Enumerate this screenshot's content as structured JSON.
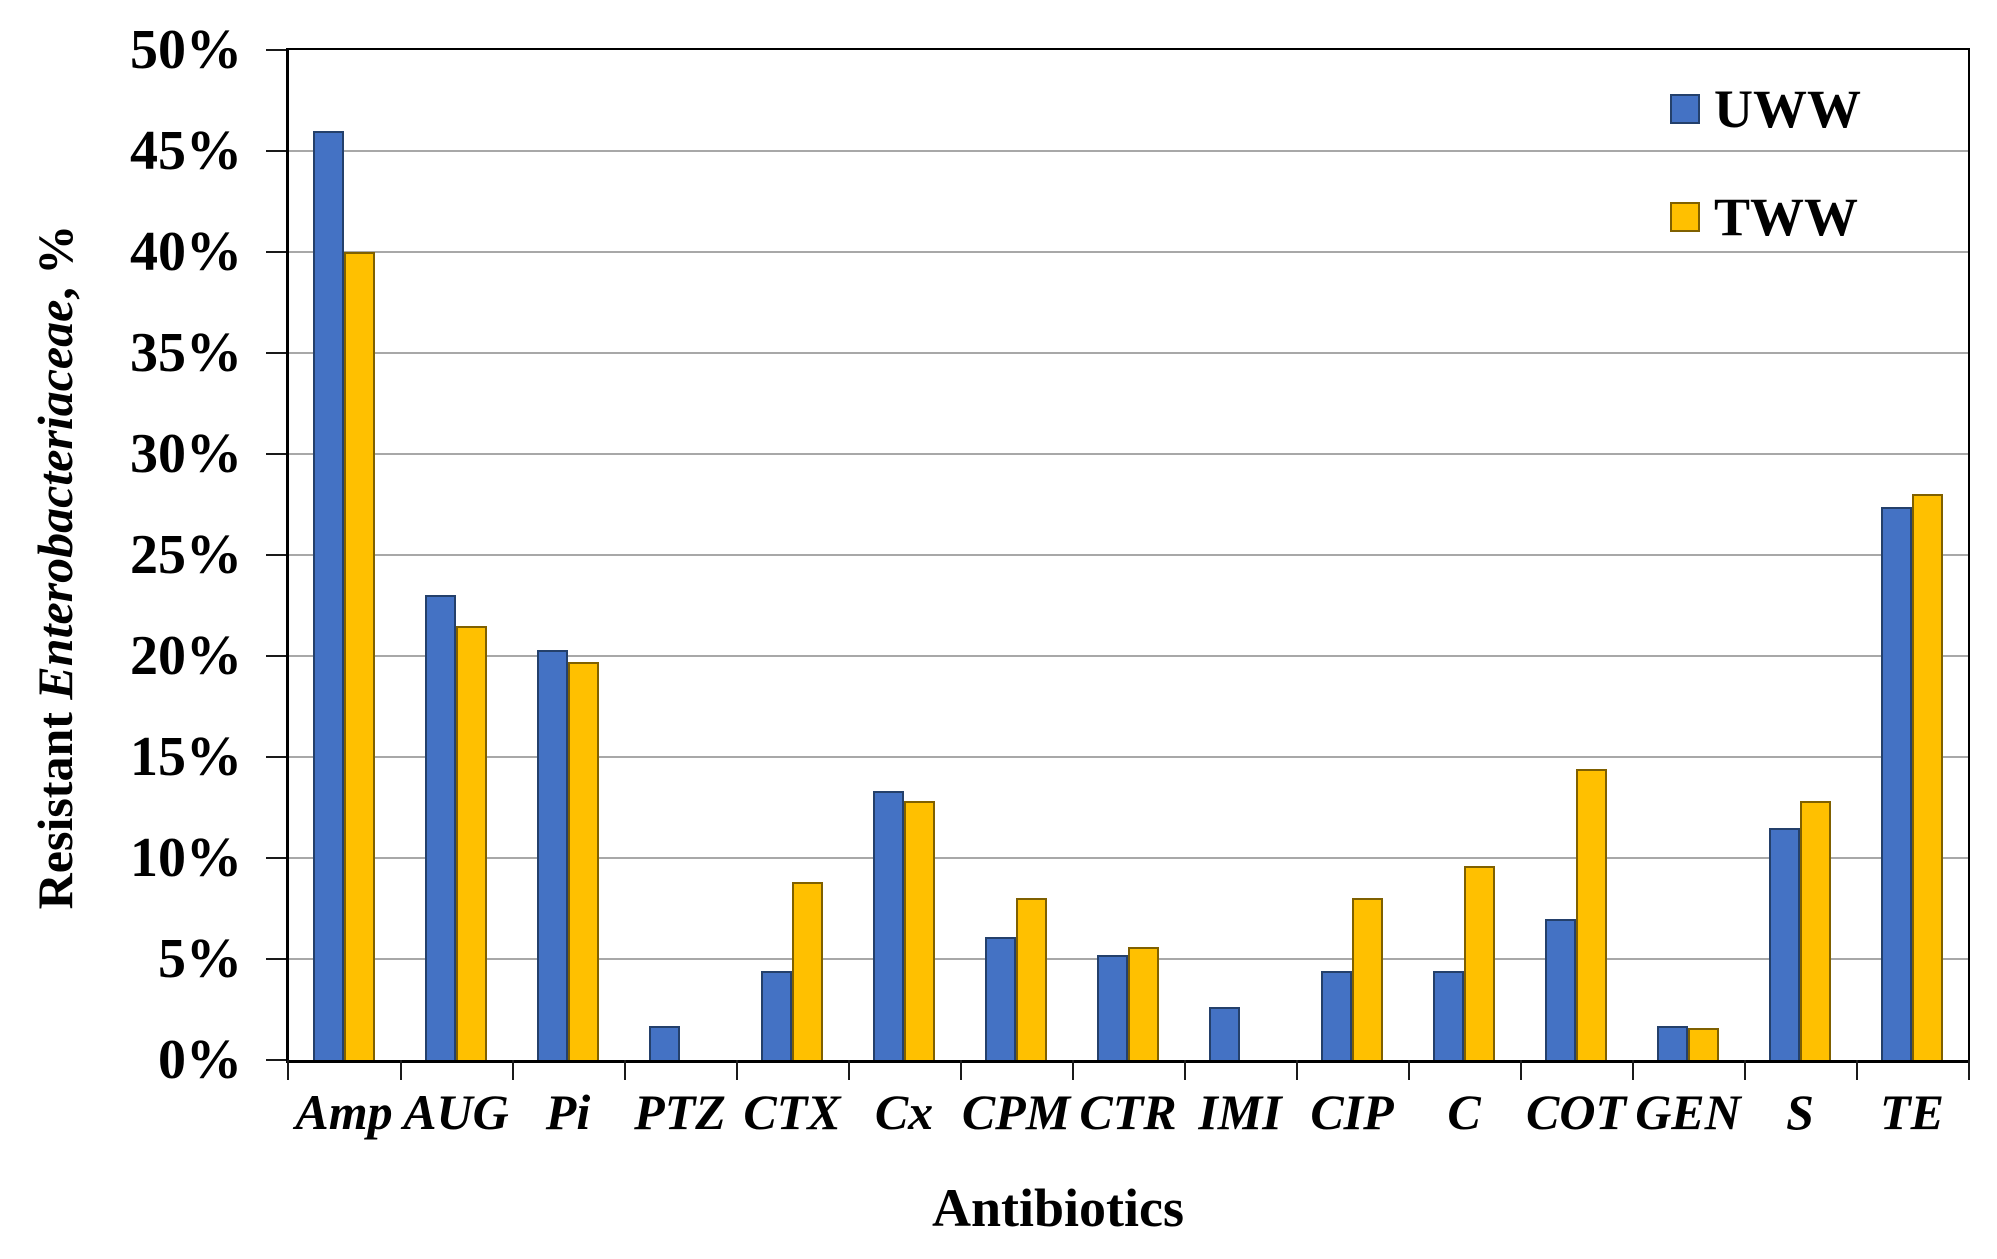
{
  "chart_data": {
    "type": "bar",
    "title": "",
    "xlabel": "Antibiotics",
    "ylabel_prefix": "Resistant ",
    "ylabel_italic": "Enterobacteriaceae",
    "ylabel_suffix": ", %",
    "categories": [
      "Amp",
      "AUG",
      "Pi",
      "PTZ",
      "CTX",
      "Cx",
      "CPM",
      "CTR",
      "IMI",
      "CIP",
      "C",
      "COT",
      "GEN",
      "S",
      "TE"
    ],
    "series": [
      {
        "name": "UWW",
        "color": "#4472C4",
        "border_color": "#24406B",
        "values": [
          46.0,
          23.0,
          20.3,
          1.7,
          4.4,
          13.3,
          6.1,
          5.2,
          2.6,
          4.4,
          4.4,
          7.0,
          1.7,
          11.5,
          27.4
        ]
      },
      {
        "name": "TWW",
        "color": "#FFC000",
        "border_color": "#7F6000",
        "values": [
          40.0,
          21.5,
          19.7,
          0,
          8.8,
          12.8,
          8.0,
          5.6,
          0,
          8.0,
          9.6,
          14.4,
          1.6,
          12.8,
          28.0
        ]
      }
    ],
    "y_ticks": [
      "0%",
      "5%",
      "10%",
      "15%",
      "20%",
      "25%",
      "30%",
      "35%",
      "40%",
      "45%",
      "50%"
    ],
    "y_tick_values": [
      0,
      5,
      10,
      15,
      20,
      25,
      30,
      35,
      40,
      45,
      50
    ],
    "ylim": [
      0,
      50
    ],
    "grid": "horizontal",
    "legend_position": "top-right-inside",
    "colors": {
      "gridline": "#A8A8A8",
      "axis": "#000000",
      "background": "#FFFFFF"
    }
  }
}
